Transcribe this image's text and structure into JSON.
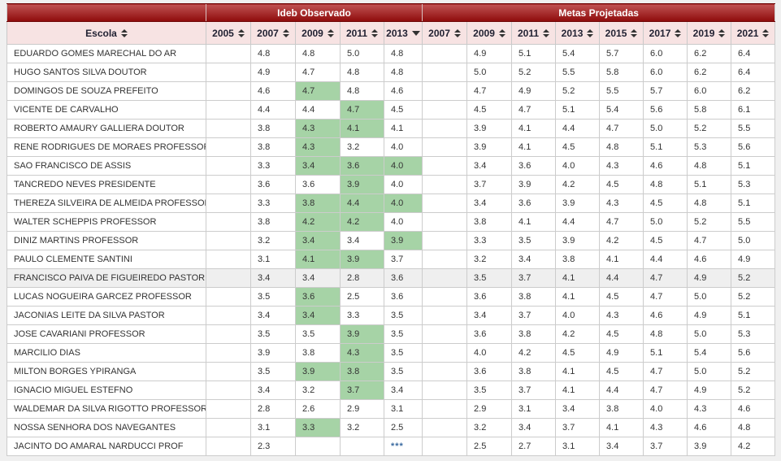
{
  "table": {
    "escola_header": "Escola",
    "observado_group": "Ideb Observado",
    "metas_group": "Metas Projetadas",
    "observado_years": [
      "2005",
      "2007",
      "2009",
      "2011",
      "2013"
    ],
    "metas_years": [
      "2007",
      "2009",
      "2011",
      "2013",
      "2015",
      "2017",
      "2019",
      "2021"
    ],
    "sort": {
      "column": "2013",
      "group": "Ideb Observado",
      "direction": "desc"
    },
    "no_data_marker": "***",
    "rows": [
      {
        "escola": "EDUARDO GOMES MARECHAL DO AR",
        "observado": [
          "",
          "4.8",
          "4.8",
          "5.0",
          "4.8"
        ],
        "green": [],
        "metas": [
          "",
          "4.9",
          "5.1",
          "5.4",
          "5.7",
          "6.0",
          "6.2",
          "6.4"
        ]
      },
      {
        "escola": "HUGO SANTOS SILVA DOUTOR",
        "observado": [
          "",
          "4.9",
          "4.7",
          "4.8",
          "4.8"
        ],
        "green": [],
        "metas": [
          "",
          "5.0",
          "5.2",
          "5.5",
          "5.8",
          "6.0",
          "6.2",
          "6.4"
        ]
      },
      {
        "escola": "DOMINGOS DE SOUZA PREFEITO",
        "observado": [
          "",
          "4.6",
          "4.7",
          "4.8",
          "4.6"
        ],
        "green": [
          2
        ],
        "metas": [
          "",
          "4.7",
          "4.9",
          "5.2",
          "5.5",
          "5.7",
          "6.0",
          "6.2"
        ]
      },
      {
        "escola": "VICENTE DE CARVALHO",
        "observado": [
          "",
          "4.4",
          "4.4",
          "4.7",
          "4.5"
        ],
        "green": [
          3
        ],
        "metas": [
          "",
          "4.5",
          "4.7",
          "5.1",
          "5.4",
          "5.6",
          "5.8",
          "6.1"
        ]
      },
      {
        "escola": "ROBERTO AMAURY GALLIERA DOUTOR",
        "observado": [
          "",
          "3.8",
          "4.3",
          "4.1",
          "4.1"
        ],
        "green": [
          2,
          3
        ],
        "metas": [
          "",
          "3.9",
          "4.1",
          "4.4",
          "4.7",
          "5.0",
          "5.2",
          "5.5"
        ]
      },
      {
        "escola": "RENE RODRIGUES DE MORAES PROFESSOR",
        "observado": [
          "",
          "3.8",
          "4.3",
          "3.2",
          "4.0"
        ],
        "green": [
          2
        ],
        "metas": [
          "",
          "3.9",
          "4.1",
          "4.5",
          "4.8",
          "5.1",
          "5.3",
          "5.6"
        ]
      },
      {
        "escola": "SAO FRANCISCO DE ASSIS",
        "observado": [
          "",
          "3.3",
          "3.4",
          "3.6",
          "4.0"
        ],
        "green": [
          2,
          3,
          4
        ],
        "metas": [
          "",
          "3.4",
          "3.6",
          "4.0",
          "4.3",
          "4.6",
          "4.8",
          "5.1"
        ]
      },
      {
        "escola": "TANCREDO NEVES PRESIDENTE",
        "observado": [
          "",
          "3.6",
          "3.6",
          "3.9",
          "4.0"
        ],
        "green": [
          3
        ],
        "metas": [
          "",
          "3.7",
          "3.9",
          "4.2",
          "4.5",
          "4.8",
          "5.1",
          "5.3"
        ]
      },
      {
        "escola": "THEREZA SILVEIRA DE ALMEIDA PROFESSORA",
        "observado": [
          "",
          "3.3",
          "3.8",
          "4.4",
          "4.0"
        ],
        "green": [
          2,
          3,
          4
        ],
        "metas": [
          "",
          "3.4",
          "3.6",
          "3.9",
          "4.3",
          "4.5",
          "4.8",
          "5.1"
        ]
      },
      {
        "escola": "WALTER SCHEPPIS PROFESSOR",
        "observado": [
          "",
          "3.8",
          "4.2",
          "4.2",
          "4.0"
        ],
        "green": [
          2,
          3
        ],
        "metas": [
          "",
          "3.8",
          "4.1",
          "4.4",
          "4.7",
          "5.0",
          "5.2",
          "5.5"
        ]
      },
      {
        "escola": "DINIZ MARTINS PROFESSOR",
        "observado": [
          "",
          "3.2",
          "3.4",
          "3.4",
          "3.9"
        ],
        "green": [
          2,
          4
        ],
        "metas": [
          "",
          "3.3",
          "3.5",
          "3.9",
          "4.2",
          "4.5",
          "4.7",
          "5.0"
        ]
      },
      {
        "escola": "PAULO CLEMENTE SANTINI",
        "observado": [
          "",
          "3.1",
          "4.1",
          "3.9",
          "3.7"
        ],
        "green": [
          2,
          3
        ],
        "metas": [
          "",
          "3.2",
          "3.4",
          "3.8",
          "4.1",
          "4.4",
          "4.6",
          "4.9"
        ]
      },
      {
        "escola": "FRANCISCO PAIVA DE FIGUEIREDO PASTOR",
        "observado": [
          "",
          "3.4",
          "3.4",
          "2.8",
          "3.6"
        ],
        "green": [],
        "shaded": true,
        "metas": [
          "",
          "3.5",
          "3.7",
          "4.1",
          "4.4",
          "4.7",
          "4.9",
          "5.2"
        ]
      },
      {
        "escola": "LUCAS NOGUEIRA GARCEZ PROFESSOR",
        "observado": [
          "",
          "3.5",
          "3.6",
          "2.5",
          "3.6"
        ],
        "green": [
          2
        ],
        "metas": [
          "",
          "3.6",
          "3.8",
          "4.1",
          "4.5",
          "4.7",
          "5.0",
          "5.2"
        ]
      },
      {
        "escola": "JACONIAS LEITE DA SILVA PASTOR",
        "observado": [
          "",
          "3.4",
          "3.4",
          "3.3",
          "3.5"
        ],
        "green": [
          2
        ],
        "metas": [
          "",
          "3.4",
          "3.7",
          "4.0",
          "4.3",
          "4.6",
          "4.9",
          "5.1"
        ]
      },
      {
        "escola": "JOSE CAVARIANI PROFESSOR",
        "observado": [
          "",
          "3.5",
          "3.5",
          "3.9",
          "3.5"
        ],
        "green": [
          3
        ],
        "metas": [
          "",
          "3.6",
          "3.8",
          "4.2",
          "4.5",
          "4.8",
          "5.0",
          "5.3"
        ]
      },
      {
        "escola": "MARCILIO DIAS",
        "observado": [
          "",
          "3.9",
          "3.8",
          "4.3",
          "3.5"
        ],
        "green": [
          3
        ],
        "metas": [
          "",
          "4.0",
          "4.2",
          "4.5",
          "4.9",
          "5.1",
          "5.4",
          "5.6"
        ]
      },
      {
        "escola": "MILTON BORGES YPIRANGA",
        "observado": [
          "",
          "3.5",
          "3.9",
          "3.8",
          "3.5"
        ],
        "green": [
          2,
          3
        ],
        "metas": [
          "",
          "3.6",
          "3.8",
          "4.1",
          "4.5",
          "4.7",
          "5.0",
          "5.2"
        ]
      },
      {
        "escola": "IGNACIO MIGUEL ESTEFNO",
        "observado": [
          "",
          "3.4",
          "3.2",
          "3.7",
          "3.4"
        ],
        "green": [
          3
        ],
        "metas": [
          "",
          "3.5",
          "3.7",
          "4.1",
          "4.4",
          "4.7",
          "4.9",
          "5.2"
        ]
      },
      {
        "escola": "WALDEMAR DA SILVA RIGOTTO PROFESSOR",
        "observado": [
          "",
          "2.8",
          "2.6",
          "2.9",
          "3.1"
        ],
        "green": [],
        "metas": [
          "",
          "2.9",
          "3.1",
          "3.4",
          "3.8",
          "4.0",
          "4.3",
          "4.6"
        ]
      },
      {
        "escola": "NOSSA SENHORA DOS NAVEGANTES",
        "observado": [
          "",
          "3.1",
          "3.3",
          "3.2",
          "2.5"
        ],
        "green": [
          2
        ],
        "metas": [
          "",
          "3.2",
          "3.4",
          "3.7",
          "4.1",
          "4.3",
          "4.6",
          "4.8"
        ]
      },
      {
        "escola": "JACINTO DO AMARAL NARDUCCI PROF",
        "observado": [
          "",
          "2.3",
          "",
          "",
          "***"
        ],
        "green": [],
        "metas": [
          "",
          "2.5",
          "2.7",
          "3.1",
          "3.4",
          "3.7",
          "3.9",
          "4.2"
        ]
      }
    ]
  },
  "colors": {
    "header_red_top": "#c05353",
    "header_red_bottom": "#8e0a0a",
    "year_row_bg": "#f7e3e3",
    "highlight_green": "#a6d3a6",
    "shaded_row_bg": "#efefef",
    "stars_blue": "#3b6aa0"
  }
}
